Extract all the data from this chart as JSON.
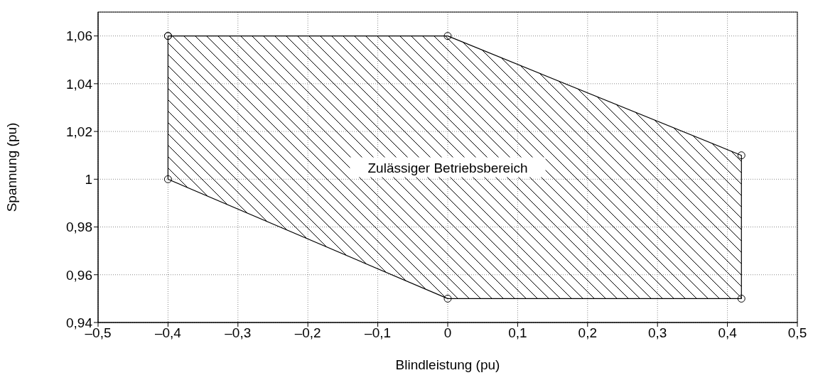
{
  "chart_data": {
    "type": "area",
    "xlabel": "Blindleistung (pu)",
    "ylabel": "Spannung (pu)",
    "annotations": [
      "Zulässiger Betriebsbereich"
    ],
    "series": [
      {
        "color": "#000000",
        "x": [
          -0.4,
          0,
          0.42,
          0.42,
          0,
          -0.4,
          -0.4
        ],
        "values": [
          1.06,
          1.06,
          1.01,
          0.95,
          0.95,
          1.0,
          1.06
        ]
      }
    ],
    "marker": "circle",
    "line_style": "solid",
    "grid": true,
    "xlim": [
      -0.5,
      0.5
    ],
    "xticks": [
      {
        "value": -0.5,
        "label": "–0,5"
      },
      {
        "value": -0.4,
        "label": "–0,4"
      },
      {
        "value": -0.3,
        "label": "–0,3"
      },
      {
        "value": -0.2,
        "label": "–0,2"
      },
      {
        "value": -0.1,
        "label": "–0,1"
      },
      0,
      {
        "value": 0.1,
        "label": "0,1"
      },
      {
        "value": 0.2,
        "label": "0,2"
      },
      {
        "value": 0.3,
        "label": "0,3"
      },
      {
        "value": 0.4,
        "label": "0,4"
      },
      {
        "value": 0.5,
        "label": "0,5"
      }
    ],
    "ylim": [
      0.94,
      1.07
    ],
    "yticks": [
      {
        "value": 0.94,
        "label": "0,94"
      },
      {
        "value": 0.96,
        "label": "0,96"
      },
      {
        "value": 0.98,
        "label": "0,98"
      },
      1,
      {
        "value": 1.02,
        "label": "1,02"
      },
      {
        "value": 1.04,
        "label": "1,04"
      },
      {
        "value": 1.06,
        "label": "1,06"
      }
    ]
  }
}
